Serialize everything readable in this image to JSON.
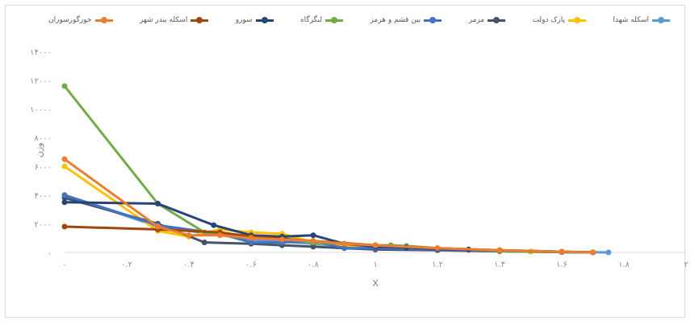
{
  "chart_data": {
    "type": "line",
    "title": "",
    "xlabel": "X",
    "ylabel": "وزن",
    "xlim": [
      0,
      2
    ],
    "ylim": [
      0,
      14000
    ],
    "x_ticks": [
      0,
      0.2,
      0.4,
      0.6,
      0.8,
      1,
      1.2,
      1.4,
      1.6,
      1.8,
      2
    ],
    "x_tick_labels": [
      "۰",
      "۰.۲",
      "۰.۴",
      "۰.۶",
      "۰.۸",
      "۱",
      "۱.۲",
      "۱.۴",
      "۱.۶",
      "۱.۸",
      "۲"
    ],
    "y_ticks": [
      0,
      2000,
      4000,
      6000,
      8000,
      10000,
      12000,
      14000
    ],
    "y_tick_labels": [
      "۰",
      "۲۰۰۰",
      "۴۰۰۰",
      "۶۰۰۰",
      "۸۰۰۰",
      "۱۰۰۰۰",
      "۱۲۰۰۰",
      "۱۴۰۰۰"
    ],
    "grid": false,
    "legend_position": "top",
    "series": [
      {
        "name": "اسکله شهدا",
        "color": "#5b9bd5",
        "points": [
          [
            0,
            4000
          ],
          [
            0.3,
            1800
          ],
          [
            0.6,
            900
          ],
          [
            0.9,
            450
          ],
          [
            1.2,
            200
          ],
          [
            1.5,
            60
          ],
          [
            1.75,
            0
          ]
        ]
      },
      {
        "name": "پارک دولت",
        "color": "#ffc000",
        "points": [
          [
            0,
            6000
          ],
          [
            0.3,
            1500
          ],
          [
            0.4,
            1100
          ],
          [
            0.5,
            1600
          ],
          [
            0.6,
            1400
          ],
          [
            0.7,
            1300
          ],
          [
            0.8,
            700
          ],
          [
            0.9,
            500
          ],
          [
            1.0,
            400
          ],
          [
            1.1,
            300
          ],
          [
            1.2,
            200
          ],
          [
            1.3,
            150
          ],
          [
            1.4,
            100
          ],
          [
            1.5,
            50
          ],
          [
            1.6,
            20
          ],
          [
            1.7,
            0
          ]
        ]
      },
      {
        "name": "مرمر",
        "color": "#44546a",
        "points": [
          [
            0,
            3800
          ],
          [
            0.3,
            2000
          ],
          [
            0.45,
            700
          ],
          [
            0.6,
            600
          ],
          [
            0.7,
            500
          ],
          [
            0.8,
            400
          ],
          [
            0.9,
            300
          ],
          [
            1.0,
            200
          ],
          [
            1.2,
            150
          ],
          [
            1.4,
            80
          ],
          [
            1.6,
            20
          ],
          [
            1.7,
            0
          ]
        ]
      },
      {
        "name": "بین قشم و هرمز",
        "color": "#4472c4",
        "points": [
          [
            0,
            4000
          ],
          [
            0.3,
            1900
          ],
          [
            0.5,
            1300
          ],
          [
            0.6,
            700
          ],
          [
            0.7,
            700
          ],
          [
            0.8,
            800
          ],
          [
            0.9,
            300
          ],
          [
            1.0,
            300
          ],
          [
            1.2,
            200
          ],
          [
            1.4,
            100
          ],
          [
            1.6,
            20
          ],
          [
            1.7,
            0
          ]
        ]
      },
      {
        "name": "لنگرگاه",
        "color": "#70ad47",
        "points": [
          [
            0,
            11600
          ],
          [
            0.3,
            3400
          ],
          [
            0.45,
            1400
          ],
          [
            0.6,
            1000
          ],
          [
            0.7,
            1000
          ],
          [
            0.8,
            700
          ],
          [
            0.9,
            600
          ],
          [
            1.0,
            500
          ],
          [
            1.05,
            500
          ],
          [
            1.1,
            450
          ],
          [
            1.2,
            300
          ],
          [
            1.3,
            200
          ],
          [
            1.4,
            100
          ],
          [
            1.6,
            30
          ],
          [
            1.7,
            0
          ]
        ]
      },
      {
        "name": "سورو",
        "color": "#264478",
        "points": [
          [
            0,
            3500
          ],
          [
            0.3,
            3400
          ],
          [
            0.48,
            1900
          ],
          [
            0.6,
            1200
          ],
          [
            0.7,
            1100
          ],
          [
            0.8,
            1200
          ],
          [
            0.9,
            600
          ],
          [
            1.0,
            400
          ],
          [
            1.1,
            350
          ],
          [
            1.2,
            250
          ],
          [
            1.3,
            200
          ],
          [
            1.4,
            150
          ],
          [
            1.6,
            50
          ],
          [
            1.7,
            0
          ]
        ]
      },
      {
        "name": "اسکله بندر شهر",
        "color": "#9e480e",
        "points": [
          [
            0,
            1800
          ],
          [
            0.3,
            1600
          ],
          [
            0.5,
            1400
          ],
          [
            0.6,
            1100
          ],
          [
            0.8,
            800
          ],
          [
            1.0,
            500
          ],
          [
            1.2,
            300
          ],
          [
            1.4,
            150
          ],
          [
            1.6,
            50
          ],
          [
            1.7,
            0
          ]
        ]
      },
      {
        "name": "خورگورسوزان",
        "color": "#ed7d31",
        "points": [
          [
            0,
            6500
          ],
          [
            0.3,
            1800
          ],
          [
            0.4,
            1200
          ],
          [
            0.5,
            1200
          ],
          [
            0.6,
            1000
          ],
          [
            0.7,
            900
          ],
          [
            0.8,
            800
          ],
          [
            0.9,
            600
          ],
          [
            1.0,
            500
          ],
          [
            1.2,
            300
          ],
          [
            1.4,
            150
          ],
          [
            1.6,
            50
          ],
          [
            1.7,
            0
          ]
        ]
      }
    ]
  }
}
